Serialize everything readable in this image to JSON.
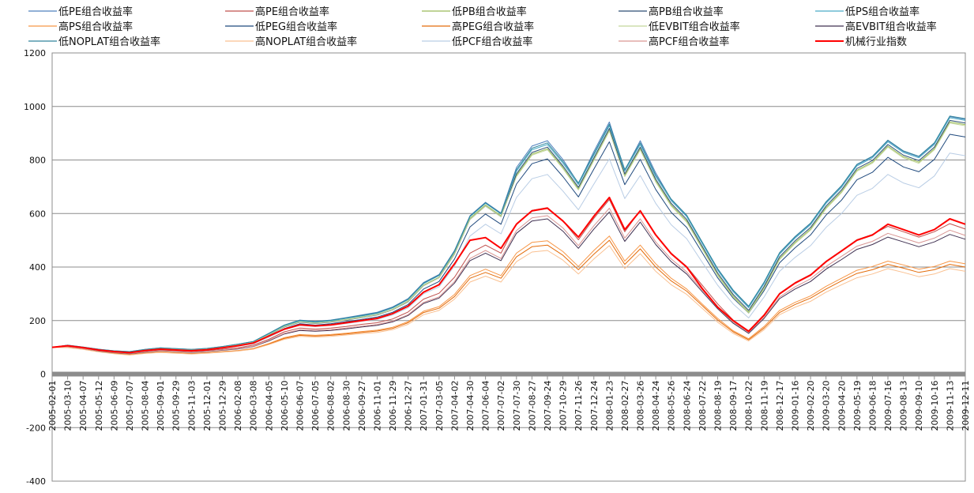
{
  "chart_data": {
    "type": "line",
    "title": "",
    "xlabel": "",
    "ylabel": "",
    "ylim": [
      -400,
      1200
    ],
    "y_ticks": [
      -400,
      -200,
      0,
      200,
      400,
      600,
      800,
      1000,
      1200
    ],
    "grid": true,
    "legend_position": "top",
    "categories": [
      "2005-02-01",
      "2005-03-10",
      "2005-04-07",
      "2005-05-12",
      "2005-06-09",
      "2005-07-07",
      "2005-08-04",
      "2005-09-01",
      "2005-09-29",
      "2005-11-03",
      "2005-12-01",
      "2005-12-29",
      "2006-02-08",
      "2006-03-08",
      "2006-04-05",
      "2006-05-10",
      "2006-06-07",
      "2006-07-05",
      "2006-08-02",
      "2006-08-30",
      "2006-09-27",
      "2006-11-01",
      "2006-11-29",
      "2006-12-27",
      "2007-01-31",
      "2007-03-05",
      "2007-04-02",
      "2007-04-30",
      "2007-06-04",
      "2007-07-02",
      "2007-07-30",
      "2007-08-27",
      "2007-09-24",
      "2007-10-29",
      "2007-11-26",
      "2007-12-24",
      "2008-01-23",
      "2008-02-27",
      "2008-03-26",
      "2008-04-24",
      "2008-05-26",
      "2008-06-24",
      "2008-07-22",
      "2008-08-19",
      "2008-09-17",
      "2008-10-22",
      "2008-11-19",
      "2008-12-17",
      "2009-01-16",
      "2009-02-20",
      "2009-03-20",
      "2009-04-20",
      "2009-05-19",
      "2009-06-18",
      "2009-07-16",
      "2009-08-13",
      "2009-09-10",
      "2009-10-16",
      "2009-11-13",
      "2009-12-11"
    ],
    "series": [
      {
        "name": "低PE组合收益率",
        "color": "#4F81BD",
        "values": [
          100,
          108,
          101,
          93,
          87,
          84,
          92,
          98,
          95,
          92,
          96,
          103,
          112,
          122,
          152,
          183,
          202,
          197,
          202,
          211,
          221,
          231,
          251,
          282,
          342,
          372,
          462,
          592,
          642,
          602,
          772,
          852,
          872,
          802,
          712,
          832,
          942,
          762,
          872,
          752,
          652,
          592,
          492,
          392,
          312,
          252,
          342,
          452,
          512,
          562,
          642,
          702,
          782,
          812,
          872,
          832,
          812,
          862,
          962,
          952
        ]
      },
      {
        "name": "高PE组合收益率",
        "color": "#C0504D",
        "values": [
          100,
          103,
          97,
          88,
          82,
          78,
          85,
          90,
          87,
          84,
          88,
          93,
          98,
          108,
          130,
          158,
          172,
          168,
          172,
          178,
          186,
          192,
          206,
          232,
          280,
          302,
          362,
          452,
          482,
          452,
          562,
          612,
          622,
          572,
          502,
          582,
          652,
          532,
          612,
          522,
          452,
          402,
          332,
          262,
          202,
          162,
          222,
          302,
          342,
          372,
          422,
          462,
          502,
          522,
          552,
          532,
          512,
          532,
          562,
          542
        ]
      },
      {
        "name": "低PB组合收益率",
        "color": "#9BBB59",
        "values": [
          100,
          106,
          99,
          91,
          85,
          82,
          90,
          96,
          93,
          90,
          94,
          101,
          110,
          119,
          148,
          178,
          196,
          191,
          196,
          204,
          213,
          223,
          242,
          273,
          332,
          362,
          452,
          582,
          632,
          592,
          742,
          822,
          842,
          772,
          692,
          802,
          912,
          742,
          842,
          722,
          632,
          572,
          472,
          372,
          292,
          232,
          322,
          432,
          492,
          542,
          622,
          682,
          762,
          792,
          852,
          812,
          792,
          842,
          942,
          932
        ]
      },
      {
        "name": "高PB组合收益率",
        "color": "#2C4D75",
        "values": [
          100,
          105,
          98,
          90,
          84,
          80,
          88,
          94,
          91,
          88,
          92,
          99,
          108,
          118,
          146,
          176,
          194,
          189,
          194,
          202,
          211,
          221,
          240,
          270,
          330,
          360,
          448,
          578,
          628,
          588,
          748,
          828,
          848,
          778,
          698,
          808,
          918,
          748,
          848,
          728,
          638,
          578,
          478,
          378,
          298,
          238,
          328,
          438,
          498,
          548,
          628,
          688,
          768,
          798,
          858,
          818,
          798,
          848,
          948,
          938
        ]
      },
      {
        "name": "低PS组合收益率",
        "color": "#4BACC6",
        "values": [
          100,
          107,
          100,
          92,
          86,
          83,
          91,
          97,
          94,
          91,
          95,
          102,
          111,
          121,
          150,
          181,
          199,
          194,
          199,
          208,
          217,
          227,
          247,
          278,
          338,
          368,
          458,
          588,
          638,
          598,
          758,
          838,
          858,
          788,
          708,
          818,
          928,
          758,
          858,
          738,
          648,
          588,
          488,
          388,
          308,
          248,
          338,
          448,
          508,
          558,
          638,
          698,
          778,
          808,
          868,
          828,
          808,
          858,
          958,
          948
        ]
      },
      {
        "name": "高PS组合收益率",
        "color": "#F79646",
        "values": [
          100,
          101,
          94,
          85,
          78,
          73,
          79,
          83,
          80,
          77,
          80,
          84,
          88,
          96,
          114,
          136,
          148,
          145,
          148,
          153,
          159,
          164,
          175,
          196,
          235,
          252,
          298,
          368,
          392,
          368,
          452,
          492,
          498,
          458,
          402,
          462,
          516,
          422,
          482,
          412,
          358,
          318,
          262,
          208,
          162,
          132,
          178,
          238,
          268,
          292,
          328,
          358,
          388,
          402,
          422,
          408,
          392,
          402,
          422,
          412
        ]
      },
      {
        "name": "低PEG组合收益率",
        "color": "#1F497D",
        "values": [
          100,
          105,
          98,
          90,
          84,
          80,
          87,
          93,
          90,
          87,
          91,
          97,
          105,
          115,
          142,
          170,
          188,
          183,
          188,
          196,
          204,
          213,
          231,
          260,
          318,
          346,
          430,
          550,
          598,
          560,
          710,
          786,
          804,
          738,
          662,
          766,
          868,
          708,
          802,
          690,
          604,
          548,
          454,
          360,
          284,
          228,
          312,
          416,
          472,
          520,
          594,
          650,
          726,
          754,
          810,
          774,
          756,
          802,
          896,
          886
        ]
      },
      {
        "name": "高PEG组合收益率",
        "color": "#E46C0A",
        "values": [
          100,
          100,
          93,
          84,
          77,
          72,
          78,
          82,
          79,
          76,
          79,
          83,
          87,
          94,
          112,
          133,
          145,
          142,
          145,
          150,
          156,
          161,
          171,
          192,
          230,
          246,
          290,
          358,
          380,
          358,
          438,
          476,
          482,
          444,
          390,
          448,
          500,
          410,
          468,
          400,
          348,
          310,
          256,
          202,
          158,
          128,
          172,
          230,
          260,
          284,
          318,
          348,
          376,
          390,
          410,
          396,
          380,
          390,
          410,
          400
        ]
      },
      {
        "name": "低EVBIT组合收益率",
        "color": "#C3D69B",
        "values": [
          100,
          106,
          99,
          91,
          85,
          82,
          90,
          96,
          93,
          90,
          94,
          101,
          109,
          119,
          147,
          177,
          195,
          190,
          195,
          203,
          212,
          222,
          241,
          271,
          330,
          360,
          448,
          578,
          628,
          588,
          738,
          818,
          838,
          768,
          688,
          798,
          908,
          738,
          838,
          718,
          628,
          568,
          468,
          368,
          288,
          228,
          318,
          428,
          488,
          538,
          618,
          678,
          758,
          788,
          848,
          808,
          788,
          838,
          938,
          928
        ]
      },
      {
        "name": "高EVBIT组合收益率",
        "color": "#403152",
        "values": [
          100,
          102,
          95,
          86,
          80,
          76,
          82,
          87,
          84,
          81,
          84,
          89,
          94,
          103,
          124,
          150,
          163,
          160,
          163,
          169,
          176,
          182,
          195,
          219,
          264,
          284,
          340,
          424,
          452,
          424,
          526,
          572,
          580,
          534,
          470,
          542,
          606,
          496,
          568,
          484,
          420,
          374,
          308,
          244,
          190,
          152,
          208,
          282,
          318,
          346,
          392,
          428,
          466,
          484,
          512,
          494,
          476,
          494,
          522,
          504
        ]
      },
      {
        "name": "低NOPLAT组合收益率",
        "color": "#31859C",
        "values": [
          100,
          108,
          101,
          93,
          87,
          84,
          92,
          98,
          95,
          92,
          96,
          103,
          112,
          122,
          152,
          183,
          201,
          196,
          201,
          210,
          219,
          229,
          249,
          280,
          340,
          370,
          460,
          590,
          640,
          600,
          764,
          844,
          864,
          794,
          714,
          824,
          934,
          764,
          864,
          744,
          654,
          594,
          494,
          394,
          314,
          254,
          344,
          454,
          514,
          564,
          644,
          704,
          784,
          814,
          874,
          834,
          814,
          864,
          964,
          954
        ]
      },
      {
        "name": "高NOPLAT组合收益率",
        "color": "#FAC090",
        "values": [
          100,
          99,
          92,
          83,
          76,
          71,
          77,
          81,
          78,
          75,
          78,
          82,
          86,
          93,
          110,
          130,
          141,
          138,
          141,
          146,
          151,
          156,
          166,
          186,
          222,
          238,
          280,
          344,
          366,
          344,
          420,
          456,
          462,
          426,
          374,
          430,
          480,
          394,
          450,
          384,
          334,
          298,
          246,
          194,
          152,
          124,
          166,
          222,
          250,
          272,
          306,
          334,
          360,
          374,
          394,
          380,
          364,
          374,
          394,
          384
        ]
      },
      {
        "name": "低PCF组合收益率",
        "color": "#B9CDE5",
        "values": [
          100,
          104,
          97,
          89,
          83,
          79,
          86,
          92,
          89,
          86,
          90,
          96,
          104,
          113,
          138,
          166,
          182,
          177,
          182,
          189,
          197,
          205,
          221,
          248,
          300,
          326,
          404,
          516,
          560,
          524,
          660,
          730,
          746,
          684,
          614,
          710,
          804,
          656,
          742,
          638,
          558,
          506,
          418,
          332,
          262,
          210,
          288,
          384,
          436,
          480,
          548,
          600,
          668,
          694,
          746,
          714,
          696,
          740,
          826,
          816
        ]
      },
      {
        "name": "高PCF组合收益率",
        "color": "#D99694",
        "values": [
          100,
          102,
          95,
          87,
          81,
          77,
          83,
          88,
          85,
          82,
          85,
          90,
          95,
          104,
          126,
          152,
          166,
          163,
          166,
          172,
          179,
          185,
          198,
          222,
          268,
          288,
          346,
          432,
          462,
          432,
          536,
          584,
          592,
          546,
          480,
          554,
          620,
          508,
          580,
          494,
          430,
          382,
          314,
          248,
          194,
          156,
          212,
          288,
          326,
          356,
          402,
          440,
          478,
          496,
          526,
          508,
          490,
          508,
          538,
          518
        ]
      },
      {
        "name": "机械行业指数",
        "color": "#FF0000",
        "values": [
          100,
          106,
          99,
          90,
          84,
          80,
          88,
          93,
          90,
          87,
          91,
          98,
          106,
          116,
          142,
          168,
          184,
          180,
          184,
          192,
          200,
          208,
          226,
          254,
          306,
          334,
          412,
          500,
          510,
          470,
          560,
          610,
          620,
          572,
          512,
          590,
          660,
          540,
          610,
          520,
          450,
          400,
          320,
          250,
          200,
          160,
          220,
          300,
          340,
          370,
          420,
          460,
          500,
          520,
          560,
          540,
          520,
          540,
          580,
          560
        ]
      }
    ]
  }
}
